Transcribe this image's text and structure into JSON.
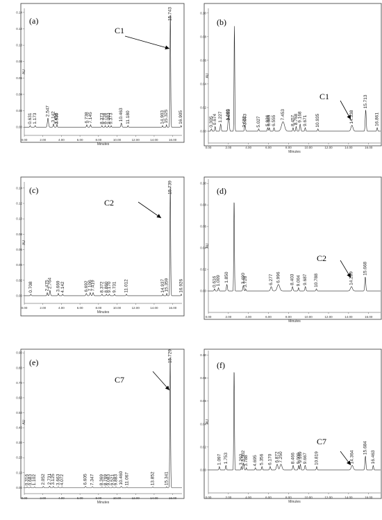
{
  "chart_data": [
    {
      "type": "line",
      "panel_label": "(a)",
      "compound": "C1",
      "xlabel": "Minutes",
      "ylabel": "AU",
      "xlim": [
        0,
        17
      ],
      "ylim": [
        -0.01,
        0.145
      ],
      "x_ticks": [
        "0.00",
        "2.00",
        "4.00",
        "6.00",
        "8.00",
        "10.00",
        "12.00",
        "14.00",
        "16.00"
      ],
      "x_tick_values": [
        0,
        2,
        4,
        6,
        8,
        10,
        12,
        14,
        16
      ],
      "y_ticks": [
        "0.00",
        "0.02",
        "0.04",
        "0.06",
        "0.08",
        "0.10",
        "0.12",
        "0.14"
      ],
      "y_tick_values": [
        0,
        0.02,
        0.04,
        0.06,
        0.08,
        0.1,
        0.12,
        0.14
      ],
      "peaks": [
        {
          "rt": 0.631,
          "label": "0.631",
          "h": 0.002,
          "w": 0.08
        },
        {
          "rt": 1.173,
          "label": "1.173",
          "h": 0.002,
          "w": 0.08
        },
        {
          "rt": 2.547,
          "label": "2.547",
          "h": 0.011,
          "w": 0.12
        },
        {
          "rt": 3.142,
          "label": "3.142",
          "h": 0.004,
          "w": 0.08
        },
        {
          "rt": 3.498,
          "label": "3.498",
          "h": 0.002,
          "w": 0.06
        },
        {
          "rt": 3.535,
          "label": "3.535",
          "h": 0.002,
          "w": 0.06
        },
        {
          "rt": 6.738,
          "label": "6.738",
          "h": 0.003,
          "w": 0.08
        },
        {
          "rt": 7.145,
          "label": "7.145",
          "h": 0.003,
          "w": 0.08
        },
        {
          "rt": 8.373,
          "label": "8.373",
          "h": 0.002,
          "w": 0.06
        },
        {
          "rt": 8.728,
          "label": "8.728",
          "h": 0.002,
          "w": 0.06
        },
        {
          "rt": 9.083,
          "label": "9.083",
          "h": 0.002,
          "w": 0.06
        },
        {
          "rt": 9.373,
          "label": "9.373",
          "h": 0.002,
          "w": 0.06
        },
        {
          "rt": 10.463,
          "label": "10.463",
          "h": 0.005,
          "w": 0.1
        },
        {
          "rt": 11.18,
          "label": "11.180",
          "h": 0.002,
          "w": 0.06
        },
        {
          "rt": 14.903,
          "label": "14.903",
          "h": 0.002,
          "w": 0.06
        },
        {
          "rt": 15.325,
          "label": "15.325",
          "h": 0.003,
          "w": 0.06
        },
        {
          "rt": 15.743,
          "label": "15.743",
          "h": 0.14,
          "w": 0.08
        },
        {
          "rt": 16.905,
          "label": "16.905",
          "h": 0.002,
          "w": 0.06
        }
      ]
    },
    {
      "type": "line",
      "panel_label": "(b)",
      "compound": "C1",
      "xlabel": "Minutes",
      "ylabel": "AU",
      "xlim": [
        0,
        17.2
      ],
      "ylim": [
        -0.01,
        0.104
      ],
      "x_ticks": [
        "0.00",
        "2.00",
        "4.00",
        "6.00",
        "8.00",
        "10.00",
        "12.00",
        "14.00",
        "16.00"
      ],
      "x_tick_values": [
        0,
        2,
        4,
        6,
        8,
        10,
        12,
        14,
        16
      ],
      "y_ticks": [
        "0.00",
        "0.02",
        "0.04",
        "0.06",
        "0.08",
        "0.10"
      ],
      "y_tick_values": [
        0,
        0.02,
        0.04,
        0.06,
        0.08,
        0.1
      ],
      "peaks": [
        {
          "rt": 0.305,
          "label": "0.305",
          "h": 0.002,
          "w": 0.08
        },
        {
          "rt": 0.674,
          "label": "0.674",
          "h": 0.004,
          "w": 0.08
        },
        {
          "rt": 1.227,
          "label": "1.227",
          "h": 0.006,
          "w": 0.1
        },
        {
          "rt": 1.989,
          "label": "1.989",
          "h": 0.008,
          "w": 0.1
        },
        {
          "rt": 2.055,
          "label": "2.055",
          "h": 0.008,
          "w": 0.1
        },
        {
          "rt": 2.6,
          "label": "",
          "h": 0.089,
          "w": 0.07
        },
        {
          "rt": 3.663,
          "label": "3.663",
          "h": 0.004,
          "w": 0.1
        },
        {
          "rt": 3.622,
          "label": "3.622",
          "h": 0.002,
          "w": 0.06
        },
        {
          "rt": 5.027,
          "label": "5.027",
          "h": 0.002,
          "w": 0.08
        },
        {
          "rt": 5.926,
          "label": "5.926",
          "h": 0.003,
          "w": 0.08
        },
        {
          "rt": 6.085,
          "label": "6.085",
          "h": 0.003,
          "w": 0.08
        },
        {
          "rt": 6.555,
          "label": "6.555",
          "h": 0.003,
          "w": 0.08
        },
        {
          "rt": 7.453,
          "label": "7.453",
          "h": 0.008,
          "w": 0.3
        },
        {
          "rt": 8.457,
          "label": "8.457",
          "h": 0.003,
          "w": 0.08
        },
        {
          "rt": 8.768,
          "label": "8.768",
          "h": 0.004,
          "w": 0.08
        },
        {
          "rt": 9.168,
          "label": "9.168",
          "h": 0.006,
          "w": 0.1
        },
        {
          "rt": 9.671,
          "label": "9.671",
          "h": 0.003,
          "w": 0.08
        },
        {
          "rt": 10.935,
          "label": "10.935",
          "h": 0.002,
          "w": 0.08
        },
        {
          "rt": 14.338,
          "label": "14.338",
          "h": 0.005,
          "w": 0.2
        },
        {
          "rt": 15.713,
          "label": "15.713",
          "h": 0.018,
          "w": 0.1
        },
        {
          "rt": 16.861,
          "label": "16.861",
          "h": 0.003,
          "w": 0.08
        }
      ]
    },
    {
      "type": "line",
      "panel_label": "(c)",
      "compound": "C2",
      "xlabel": "Minutes",
      "ylabel": "AU",
      "xlim": [
        0,
        17
      ],
      "ylim": [
        -0.01,
        0.148
      ],
      "x_ticks": [
        "0.00",
        "2.00",
        "4.00",
        "6.00",
        "8.00",
        "10.00",
        "12.00",
        "14.00",
        "16.00"
      ],
      "x_tick_values": [
        0,
        2,
        4,
        6,
        8,
        10,
        12,
        14,
        16
      ],
      "y_ticks": [
        "0.00",
        "0.02",
        "0.04",
        "0.06",
        "0.08",
        "0.10",
        "0.12",
        "0.14"
      ],
      "y_tick_values": [
        0,
        0.02,
        0.04,
        0.06,
        0.08,
        0.1,
        0.12,
        0.14
      ],
      "peaks": [
        {
          "rt": 0.708,
          "label": "0.708",
          "h": 0.002,
          "w": 0.08
        },
        {
          "rt": 2.475,
          "label": "2.475",
          "h": 0.004,
          "w": 0.08
        },
        {
          "rt": 2.764,
          "label": "2.764",
          "h": 0.007,
          "w": 0.1
        },
        {
          "rt": 3.669,
          "label": "3.669",
          "h": 0.003,
          "w": 0.08
        },
        {
          "rt": 4.142,
          "label": "4.142",
          "h": 0.002,
          "w": 0.08
        },
        {
          "rt": 6.692,
          "label": "6.692",
          "h": 0.003,
          "w": 0.1
        },
        {
          "rt": 7.106,
          "label": "7.106",
          "h": 0.004,
          "w": 0.1
        },
        {
          "rt": 7.419,
          "label": "7.419",
          "h": 0.004,
          "w": 0.1
        },
        {
          "rt": 8.372,
          "label": "8.372",
          "h": 0.002,
          "w": 0.08
        },
        {
          "rt": 8.86,
          "label": "8.860",
          "h": 0.002,
          "w": 0.08
        },
        {
          "rt": 9.17,
          "label": "9.170",
          "h": 0.002,
          "w": 0.08
        },
        {
          "rt": 9.731,
          "label": "9.731",
          "h": 0.002,
          "w": 0.08
        },
        {
          "rt": 11.012,
          "label": "11.012",
          "h": 0.002,
          "w": 0.08
        },
        {
          "rt": 14.937,
          "label": "14.937",
          "h": 0.002,
          "w": 0.06
        },
        {
          "rt": 15.359,
          "label": "15.359",
          "h": 0.003,
          "w": 0.06
        },
        {
          "rt": 15.739,
          "label": "15.739",
          "h": 0.143,
          "w": 0.08
        },
        {
          "rt": 16.926,
          "label": "16.926",
          "h": 0.002,
          "w": 0.06
        }
      ]
    },
    {
      "type": "line",
      "panel_label": "(d)",
      "compound": "C2",
      "xlabel": "Minutes",
      "ylabel": "AU",
      "xlim": [
        0,
        17.2
      ],
      "ylim": [
        -0.02,
        0.104
      ],
      "x_ticks": [
        "0.00",
        "2.00",
        "4.00",
        "6.00",
        "8.00",
        "10.00",
        "12.00",
        "14.00",
        "16.00"
      ],
      "x_tick_values": [
        0,
        2,
        4,
        6,
        8,
        10,
        12,
        14,
        16
      ],
      "y_ticks": [
        "0.00",
        "0.02",
        "0.04",
        "0.06",
        "0.08",
        "0.10"
      ],
      "y_tick_values": [
        0,
        0.02,
        0.04,
        0.06,
        0.08,
        0.1
      ],
      "peaks": [
        {
          "rt": 0.616,
          "label": "0.616",
          "h": 0.002,
          "w": 0.08
        },
        {
          "rt": 1.009,
          "label": "1.009",
          "h": 0.003,
          "w": 0.08
        },
        {
          "rt": 1.85,
          "label": "1.850",
          "h": 0.006,
          "w": 0.1
        },
        {
          "rt": 2.57,
          "label": "",
          "h": 0.085,
          "w": 0.07
        },
        {
          "rt": 3.49,
          "label": "3.490",
          "h": 0.005,
          "w": 0.1
        },
        {
          "rt": 3.726,
          "label": "3.726",
          "h": 0.002,
          "w": 0.06
        },
        {
          "rt": 6.277,
          "label": "6.277",
          "h": 0.004,
          "w": 0.15
        },
        {
          "rt": 6.996,
          "label": "6.996",
          "h": 0.006,
          "w": 0.25
        },
        {
          "rt": 8.403,
          "label": "8.403",
          "h": 0.004,
          "w": 0.1
        },
        {
          "rt": 9.004,
          "label": "9.004",
          "h": 0.003,
          "w": 0.08
        },
        {
          "rt": 9.687,
          "label": "9.687",
          "h": 0.004,
          "w": 0.1
        },
        {
          "rt": 10.788,
          "label": "10.788",
          "h": 0.002,
          "w": 0.08
        },
        {
          "rt": 14.289,
          "label": "14.289",
          "h": 0.004,
          "w": 0.2
        },
        {
          "rt": 15.668,
          "label": "15.668",
          "h": 0.013,
          "w": 0.1
        }
      ]
    },
    {
      "type": "line",
      "panel_label": "(e)",
      "compound": "C7",
      "xlabel": "Minutes",
      "ylabel": "AU",
      "xlim": [
        0,
        17
      ],
      "ylim": [
        -0.04,
        0.915
      ],
      "x_ticks": [
        "0.00",
        "2.00",
        "4.00",
        "6.00",
        "8.00",
        "10.00",
        "12.00",
        "14.00",
        "16.00"
      ],
      "x_tick_values": [
        0,
        2,
        4,
        6,
        8,
        10,
        12,
        14,
        16
      ],
      "y_ticks": [
        "0.00",
        "0.10",
        "0.20",
        "0.30",
        "0.40",
        "0.50",
        "0.60",
        "0.70",
        "0.80",
        "0.90"
      ],
      "y_tick_values": [
        0,
        0.1,
        0.2,
        0.3,
        0.4,
        0.5,
        0.6,
        0.7,
        0.8,
        0.9
      ],
      "peaks": [
        {
          "rt": 0.316,
          "label": "0.316",
          "h": 0.005,
          "w": 0.08
        },
        {
          "rt": 0.683,
          "label": "0.683",
          "h": 0.005,
          "w": 0.08
        },
        {
          "rt": 1.102,
          "label": "1.102",
          "h": 0.005,
          "w": 0.08
        },
        {
          "rt": 2.052,
          "label": "2.052",
          "h": 0.008,
          "w": 0.08
        },
        {
          "rt": 2.731,
          "label": "2.731",
          "h": 0.01,
          "w": 0.08
        },
        {
          "rt": 3.125,
          "label": "3.125",
          "h": 0.008,
          "w": 0.08
        },
        {
          "rt": 3.663,
          "label": "3.663",
          "h": 0.006,
          "w": 0.08
        },
        {
          "rt": 4.072,
          "label": "4.072",
          "h": 0.005,
          "w": 0.08
        },
        {
          "rt": 6.605,
          "label": "6.605",
          "h": 0.008,
          "w": 0.1
        },
        {
          "rt": 7.347,
          "label": "7.347",
          "h": 0.006,
          "w": 0.1
        },
        {
          "rt": 8.369,
          "label": "8.369",
          "h": 0.005,
          "w": 0.08
        },
        {
          "rt": 8.769,
          "label": "8.769",
          "h": 0.005,
          "w": 0.08
        },
        {
          "rt": 9.083,
          "label": "9.083",
          "h": 0.005,
          "w": 0.08
        },
        {
          "rt": 9.521,
          "label": "9.521",
          "h": 0.005,
          "w": 0.08
        },
        {
          "rt": 9.883,
          "label": "9.883",
          "h": 0.005,
          "w": 0.08
        },
        {
          "rt": 10.46,
          "label": "10.460",
          "h": 0.008,
          "w": 0.1
        },
        {
          "rt": 11.067,
          "label": "11.067",
          "h": 0.004,
          "w": 0.08
        },
        {
          "rt": 13.852,
          "label": "13.852",
          "h": 0.005,
          "w": 0.08
        },
        {
          "rt": 15.341,
          "label": "15.341",
          "h": 0.006,
          "w": 0.06
        },
        {
          "rt": 15.729,
          "label": "15.729",
          "h": 0.88,
          "w": 0.08
        }
      ]
    },
    {
      "type": "line",
      "panel_label": "(f)",
      "compound": "C7",
      "xlabel": "Minutes",
      "ylabel": "AU",
      "xlim": [
        0,
        17.2
      ],
      "ylim": [
        -0.02,
        0.104
      ],
      "x_ticks": [
        "0.00",
        "2.00",
        "4.00",
        "6.00",
        "8.00",
        "10.00",
        "12.00",
        "14.00",
        "16.00"
      ],
      "x_tick_values": [
        0,
        2,
        4,
        6,
        8,
        10,
        12,
        14,
        16
      ],
      "y_ticks": [
        "0.00",
        "0.02",
        "0.04",
        "0.06",
        "0.08",
        "0.10"
      ],
      "y_tick_values": [
        0,
        0.02,
        0.04,
        0.06,
        0.08,
        0.1
      ],
      "peaks": [
        {
          "rt": 1.097,
          "label": "1.097",
          "h": 0.003,
          "w": 0.08
        },
        {
          "rt": 1.753,
          "label": "1.753",
          "h": 0.004,
          "w": 0.08
        },
        {
          "rt": 2.57,
          "label": "",
          "h": 0.088,
          "w": 0.07
        },
        {
          "rt": 3.502,
          "label": "3.502",
          "h": 0.006,
          "w": 0.1
        },
        {
          "rt": 3.292,
          "label": "3.292",
          "h": 0.003,
          "w": 0.06
        },
        {
          "rt": 3.788,
          "label": "3.788",
          "h": 0.002,
          "w": 0.06
        },
        {
          "rt": 4.695,
          "label": "4.695",
          "h": 0.002,
          "w": 0.08
        },
        {
          "rt": 5.356,
          "label": "5.356",
          "h": 0.003,
          "w": 0.08
        },
        {
          "rt": 6.17,
          "label": "6.170",
          "h": 0.003,
          "w": 0.1
        },
        {
          "rt": 6.872,
          "label": "6.872",
          "h": 0.005,
          "w": 0.15
        },
        {
          "rt": 7.25,
          "label": "7.250",
          "h": 0.005,
          "w": 0.2
        },
        {
          "rt": 8.466,
          "label": "8.466",
          "h": 0.004,
          "w": 0.1
        },
        {
          "rt": 9.009,
          "label": "9.009",
          "h": 0.004,
          "w": 0.08
        },
        {
          "rt": 9.189,
          "label": "9.189",
          "h": 0.005,
          "w": 0.08
        },
        {
          "rt": 9.667,
          "label": "9.667",
          "h": 0.004,
          "w": 0.1
        },
        {
          "rt": 10.819,
          "label": "10.819",
          "h": 0.003,
          "w": 0.08
        },
        {
          "rt": 14.364,
          "label": "14.364",
          "h": 0.004,
          "w": 0.2
        },
        {
          "rt": 15.684,
          "label": "15.684",
          "h": 0.012,
          "w": 0.1
        },
        {
          "rt": 16.463,
          "label": "16.463",
          "h": 0.004,
          "w": 0.08
        }
      ]
    }
  ]
}
